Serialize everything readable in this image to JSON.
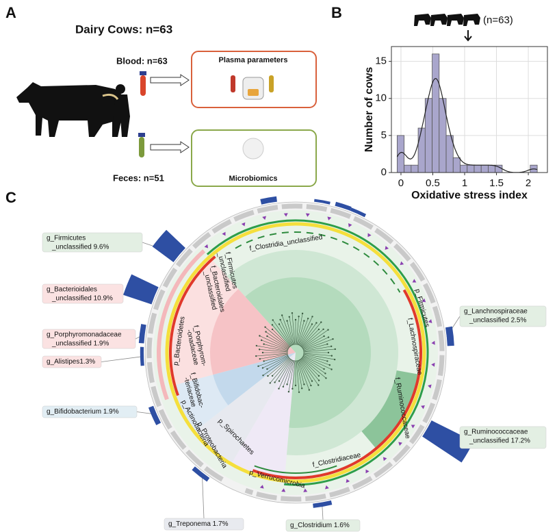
{
  "panel_labels": [
    "A",
    "B",
    "C"
  ],
  "panel_a": {
    "title": "Dairy Cows: n=63",
    "blood": "Blood: n=63",
    "plasma": "Plasma parameters",
    "feces": "Feces: n=51",
    "microbiomics": "Microbiomics"
  },
  "chart_data": {
    "type": "histogram",
    "annotation": "(n=63)",
    "x_label": "Oxidative stress index",
    "y_label": "Number of cows",
    "bins": [
      -0.06,
      0.05,
      0.16,
      0.27,
      0.38,
      0.49,
      0.6,
      0.71,
      0.82,
      0.93,
      1.04,
      1.15,
      1.26,
      1.37,
      1.48,
      1.59,
      1.7,
      1.81,
      1.92,
      2.03,
      2.14
    ],
    "values": [
      5,
      1,
      1,
      6,
      10,
      16,
      10,
      5,
      2,
      1,
      1,
      1,
      1,
      1,
      1,
      0,
      0,
      0,
      0,
      1
    ],
    "color": "#a9a6cc",
    "xlim": [
      -0.15,
      2.3
    ],
    "ylim": [
      0,
      17
    ],
    "xticks": [
      0,
      0.5,
      1,
      1.5,
      2
    ],
    "yticks": [
      0,
      5,
      10,
      15
    ],
    "grid": true
  },
  "panel_c": {
    "bar_color": "#2e4fa3",
    "callouts": [
      {
        "lines": [
          "g_Firmicutes",
          "_unclassified 9.6%"
        ],
        "value": 9.6,
        "color": "#e3efe3"
      },
      {
        "lines": [
          "g_Bacterioidales",
          "_unclassified 10.9%"
        ],
        "value": 10.9,
        "color": "#fbe2e2"
      },
      {
        "lines": [
          "g_Porphyromonadaceae",
          "_unclassified 1.9%"
        ],
        "value": 1.9,
        "color": "#fbe2e2"
      },
      {
        "lines": [
          "g_Alistipes1.3%"
        ],
        "value": 1.3,
        "color": "#fbe2e2"
      },
      {
        "lines": [
          "g_Bifidobacterium 1.9%"
        ],
        "value": 1.9,
        "color": "#e2eef4"
      },
      {
        "lines": [
          "g_Treponema 1.7%"
        ],
        "value": 1.7,
        "color": "#e8eaef"
      },
      {
        "lines": [
          "g_Clostridium 1.6%"
        ],
        "value": 1.6,
        "color": "#e3efe3"
      },
      {
        "lines": [
          "g_Ruminococcaceae",
          "_unclassified 17.2%"
        ],
        "value": 17.2,
        "color": "#e3efe3"
      },
      {
        "lines": [
          "g_Lanchnospiraceae",
          "_unclassified 2.5%"
        ],
        "value": 2.5,
        "color": "#e3efe3"
      }
    ],
    "clade_labels": [
      [
        "f_Clostridia_unclassified"
      ],
      [
        "p_Firmicutes"
      ],
      [
        "f_Lachnospiraceae"
      ],
      [
        "f_Ruminococcaceae"
      ],
      [
        "f_Clostridiaceae"
      ],
      [
        "p_Verrucomicrobia"
      ],
      [
        "p_Spirochaetes"
      ],
      [
        "p_Proteobacteria"
      ],
      [
        "p_Actinobacteria"
      ],
      [
        "f_Bifidobac-",
        "-teriaceae"
      ],
      [
        "p_Bacteroidetes"
      ],
      [
        "f_Porphyrom-",
        "-onadaceae"
      ],
      [
        "f_Bacteroidales",
        "_unclassified"
      ],
      [
        "f_Firmicutes",
        "_unclassified"
      ]
    ]
  }
}
